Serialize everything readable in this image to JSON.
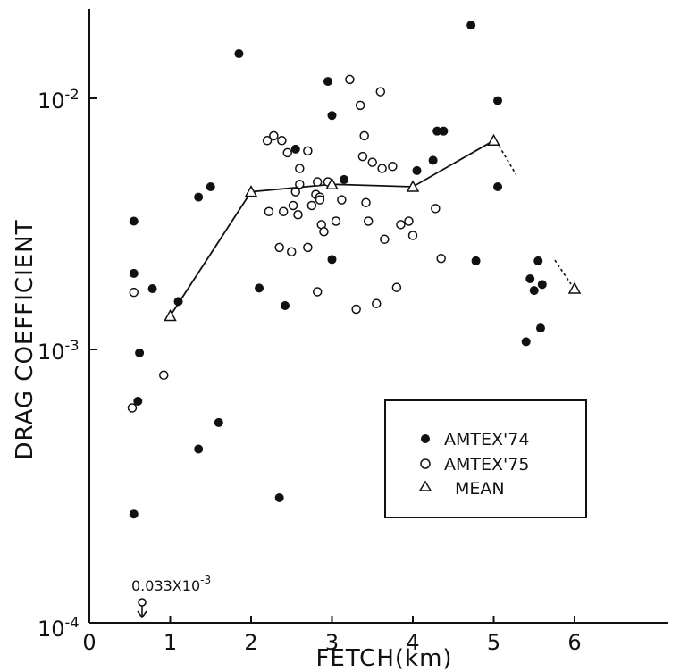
{
  "chart_data": {
    "type": "scatter",
    "xlabel": "FETCH(km)",
    "ylabel": "DRAG COEFFICIENT",
    "xlim": [
      0,
      7
    ],
    "ylim": [
      0.0001,
      0.02
    ],
    "y_scale": "log",
    "grid": false,
    "legend_position": "lower-right",
    "x_ticks": [
      "0",
      "1",
      "2",
      "3",
      "4",
      "5",
      "6"
    ],
    "y_ticks": [
      {
        "value": 0.0001,
        "base": "10",
        "exp": "-4"
      },
      {
        "value": 0.001,
        "base": "10",
        "exp": "-3"
      },
      {
        "value": 0.01,
        "base": "10",
        "exp": "-2"
      }
    ],
    "series": [
      {
        "name": "AMTEX'74",
        "marker": "filled-circle",
        "points": [
          [
            0.55,
            0.0034
          ],
          [
            0.55,
            0.00215
          ],
          [
            0.55,
            0.00026
          ],
          [
            0.62,
            0.00107
          ],
          [
            0.6,
            0.0007
          ],
          [
            0.78,
            0.00188
          ],
          [
            1.1,
            0.00168
          ],
          [
            1.35,
            0.0042
          ],
          [
            1.5,
            0.0046
          ],
          [
            1.35,
            0.00046
          ],
          [
            1.6,
            0.00058
          ],
          [
            1.85,
            0.0148
          ],
          [
            2.1,
            0.00189
          ],
          [
            2.35,
            0.0003
          ],
          [
            2.42,
            0.00162
          ],
          [
            2.55,
            0.0064
          ],
          [
            2.95,
            0.0116
          ],
          [
            3.0,
            0.0086
          ],
          [
            3.0,
            0.00243
          ],
          [
            3.15,
            0.0049
          ],
          [
            4.05,
            0.0053
          ],
          [
            4.25,
            0.0058
          ],
          [
            4.3,
            0.0075
          ],
          [
            4.38,
            0.0075
          ],
          [
            4.72,
            0.019
          ],
          [
            4.78,
            0.0024
          ],
          [
            5.05,
            0.0098
          ],
          [
            5.05,
            0.0046
          ],
          [
            5.4,
            0.00118
          ],
          [
            5.45,
            0.00205
          ],
          [
            5.5,
            0.00185
          ],
          [
            5.55,
            0.0024
          ],
          [
            5.58,
            0.00133
          ],
          [
            5.6,
            0.00195
          ]
        ]
      },
      {
        "name": "AMTEX'75",
        "marker": "open-circle",
        "points": [
          [
            0.55,
            0.00182
          ],
          [
            0.53,
            0.00066
          ],
          [
            0.92,
            0.00088
          ],
          [
            2.2,
            0.0069
          ],
          [
            2.28,
            0.0072
          ],
          [
            2.22,
            0.0037
          ],
          [
            2.38,
            0.0069
          ],
          [
            2.35,
            0.0027
          ],
          [
            2.4,
            0.0037
          ],
          [
            2.45,
            0.0062
          ],
          [
            2.5,
            0.0026
          ],
          [
            2.52,
            0.0039
          ],
          [
            2.55,
            0.0044
          ],
          [
            2.58,
            0.0036
          ],
          [
            2.6,
            0.0054
          ],
          [
            2.6,
            0.0047
          ],
          [
            2.7,
            0.0027
          ],
          [
            2.7,
            0.0063
          ],
          [
            2.75,
            0.0039
          ],
          [
            2.8,
            0.0043
          ],
          [
            2.82,
            0.0048
          ],
          [
            2.85,
            0.0042
          ],
          [
            2.85,
            0.0041
          ],
          [
            2.87,
            0.0033
          ],
          [
            2.9,
            0.0031
          ],
          [
            2.82,
            0.00183
          ],
          [
            2.95,
            0.0048
          ],
          [
            3.05,
            0.0034
          ],
          [
            3.12,
            0.0041
          ],
          [
            3.22,
            0.0118
          ],
          [
            3.3,
            0.00157
          ],
          [
            3.35,
            0.0094
          ],
          [
            3.38,
            0.006
          ],
          [
            3.4,
            0.0072
          ],
          [
            3.42,
            0.004
          ],
          [
            3.45,
            0.0034
          ],
          [
            3.5,
            0.0057
          ],
          [
            3.55,
            0.00165
          ],
          [
            3.6,
            0.0106
          ],
          [
            3.62,
            0.0054
          ],
          [
            3.65,
            0.0029
          ],
          [
            3.75,
            0.0055
          ],
          [
            3.8,
            0.0019
          ],
          [
            3.85,
            0.0033
          ],
          [
            3.95,
            0.0034
          ],
          [
            4.0,
            0.003
          ],
          [
            4.28,
            0.0038
          ],
          [
            4.35,
            0.00245
          ]
        ]
      },
      {
        "name": "MEAN",
        "marker": "open-triangle",
        "points": [
          [
            1.0,
            0.00148
          ],
          [
            2.0,
            0.0044
          ],
          [
            3.0,
            0.0047
          ],
          [
            4.0,
            0.0046
          ],
          [
            5.0,
            0.0069
          ],
          [
            6.0,
            0.00188
          ]
        ]
      }
    ],
    "annotations": [
      {
        "base": "0.033X10",
        "exp": "-3"
      }
    ]
  },
  "legend": {
    "items": [
      {
        "label": "AMTEX'74"
      },
      {
        "label": "AMTEX'75"
      },
      {
        "label": "MEAN"
      }
    ]
  }
}
